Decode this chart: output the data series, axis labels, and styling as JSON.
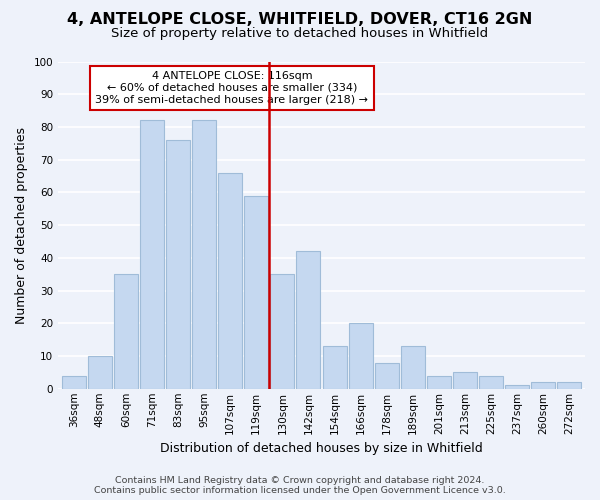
{
  "title": "4, ANTELOPE CLOSE, WHITFIELD, DOVER, CT16 2GN",
  "subtitle": "Size of property relative to detached houses in Whitfield",
  "xlabel": "Distribution of detached houses by size in Whitfield",
  "ylabel": "Number of detached properties",
  "categories": [
    "36sqm",
    "48sqm",
    "60sqm",
    "71sqm",
    "83sqm",
    "95sqm",
    "107sqm",
    "119sqm",
    "130sqm",
    "142sqm",
    "154sqm",
    "166sqm",
    "178sqm",
    "189sqm",
    "201sqm",
    "213sqm",
    "225sqm",
    "237sqm",
    "260sqm",
    "272sqm"
  ],
  "values": [
    4,
    10,
    35,
    82,
    76,
    82,
    66,
    59,
    35,
    42,
    13,
    20,
    8,
    13,
    4,
    5,
    4,
    1,
    2,
    2
  ],
  "bar_color": "#c5d8f0",
  "bar_edge_color": "#a0bcd8",
  "vline_x": 7.5,
  "vline_color": "#cc0000",
  "annotation_title": "4 ANTELOPE CLOSE: 116sqm",
  "annotation_line1": "← 60% of detached houses are smaller (334)",
  "annotation_line2": "39% of semi-detached houses are larger (218) →",
  "annotation_box_color": "#ffffff",
  "annotation_box_edge": "#cc0000",
  "ylim": [
    0,
    100
  ],
  "yticks": [
    0,
    10,
    20,
    30,
    40,
    50,
    60,
    70,
    80,
    90,
    100
  ],
  "footer_line1": "Contains HM Land Registry data © Crown copyright and database right 2024.",
  "footer_line2": "Contains public sector information licensed under the Open Government Licence v3.0.",
  "bg_color": "#eef2fa",
  "plot_bg_color": "#eef2fa",
  "grid_color": "#ffffff",
  "title_fontsize": 11.5,
  "subtitle_fontsize": 9.5,
  "axis_label_fontsize": 9,
  "tick_fontsize": 7.5,
  "footer_fontsize": 6.8
}
